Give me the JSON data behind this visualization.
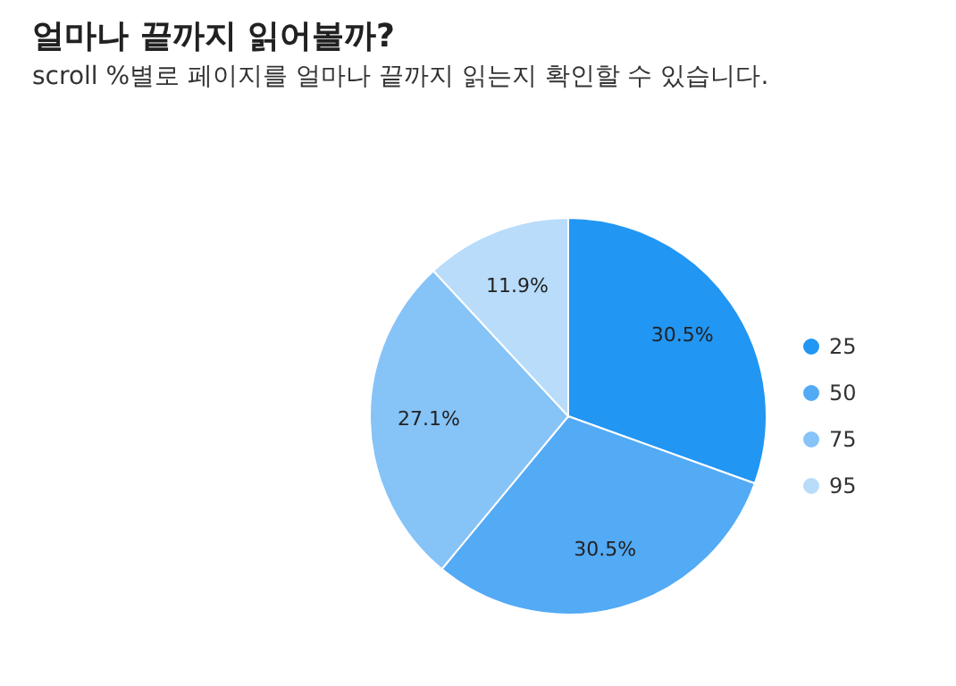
{
  "chart_data": {
    "type": "pie",
    "title": "얼마나 끝까지 읽어볼까?",
    "subtitle": "scroll %별로 페이지를 얼마나 끝까지 읽는지 확인할 수 있습니다.",
    "categories": [
      "25",
      "50",
      "75",
      "95"
    ],
    "values": [
      30.5,
      30.5,
      27.1,
      11.9
    ],
    "colors": [
      "#2196f3",
      "#53aaf5",
      "#86c3f7",
      "#b8dcfa"
    ],
    "value_labels": [
      "30.5%",
      "30.5%",
      "27.1%",
      "11.9%"
    ],
    "legend": "right"
  }
}
